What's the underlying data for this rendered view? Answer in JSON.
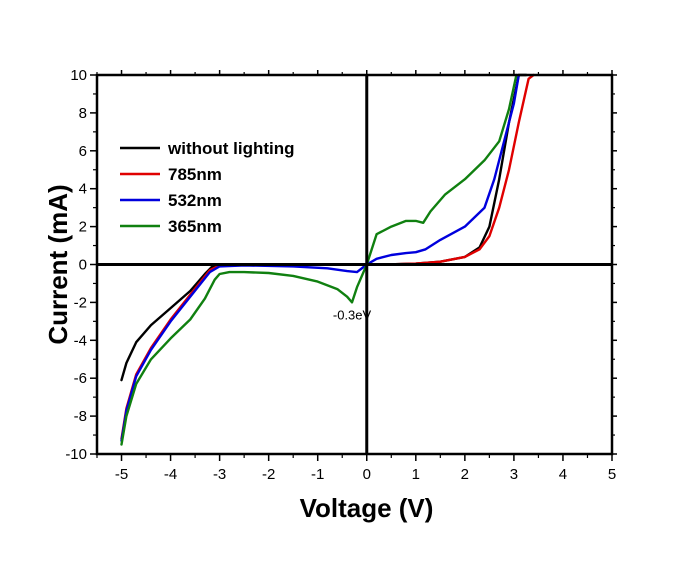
{
  "chart_data": {
    "type": "line",
    "xlabel": "Voltage (V)",
    "ylabel": "Current (mA)",
    "xlim": [
      -5.5,
      5
    ],
    "ylim": [
      -10,
      10
    ],
    "xticks": [
      -5,
      -4,
      -3,
      -2,
      -1,
      0,
      1,
      2,
      3,
      4,
      5
    ],
    "yticks": [
      -10,
      -8,
      -6,
      -4,
      -2,
      0,
      2,
      4,
      6,
      8,
      10
    ],
    "legend_position": "top-left",
    "zero_lines": true,
    "grid": false,
    "annotations": [
      {
        "text": "-0.3eV",
        "x": -0.3,
        "y": -2.9
      }
    ],
    "series": [
      {
        "name": "without lighting",
        "color": "#000000",
        "x": [
          -5.0,
          -4.9,
          -4.7,
          -4.4,
          -4.0,
          -3.6,
          -3.3,
          -3.15,
          -3.0,
          -2.5,
          -1.5,
          -0.5,
          0,
          0.5,
          1.0,
          1.5,
          2.0,
          2.3,
          2.5,
          2.7,
          2.9,
          3.1,
          3.25
        ],
        "y": [
          -6.1,
          -5.2,
          -4.1,
          -3.2,
          -2.3,
          -1.4,
          -0.5,
          -0.1,
          -0.02,
          -0.01,
          -0.005,
          -0.002,
          0,
          0.01,
          0.05,
          0.15,
          0.4,
          0.9,
          2.0,
          4.5,
          7.5,
          10.0,
          10.0
        ]
      },
      {
        "name": "785nm",
        "color": "#e00000",
        "x": [
          -5.0,
          -4.9,
          -4.7,
          -4.4,
          -4.0,
          -3.6,
          -3.2,
          -3.0,
          -2.5,
          -1.5,
          -0.5,
          0,
          0.5,
          1.0,
          1.5,
          2.0,
          2.3,
          2.5,
          2.7,
          2.9,
          3.1,
          3.3,
          3.4
        ],
        "y": [
          -9.2,
          -7.6,
          -5.8,
          -4.4,
          -2.9,
          -1.6,
          -0.3,
          -0.05,
          -0.02,
          -0.01,
          -0.005,
          0,
          0.01,
          0.05,
          0.15,
          0.4,
          0.8,
          1.5,
          3.0,
          5.0,
          7.5,
          9.8,
          10.0
        ]
      },
      {
        "name": "532nm",
        "color": "#0000dd",
        "x": [
          -5.0,
          -4.9,
          -4.7,
          -4.4,
          -4.0,
          -3.6,
          -3.2,
          -3.0,
          -2.5,
          -1.5,
          -0.8,
          -0.4,
          -0.2,
          0,
          0.2,
          0.5,
          0.8,
          1.0,
          1.2,
          1.5,
          2.0,
          2.4,
          2.6,
          2.8,
          3.0,
          3.1
        ],
        "y": [
          -9.3,
          -7.7,
          -5.9,
          -4.5,
          -3.0,
          -1.7,
          -0.4,
          -0.1,
          -0.05,
          -0.1,
          -0.2,
          -0.35,
          -0.4,
          0,
          0.3,
          0.5,
          0.6,
          0.65,
          0.8,
          1.3,
          2.0,
          3.0,
          4.5,
          6.5,
          8.5,
          10.0
        ]
      },
      {
        "name": "365nm",
        "color": "#108010",
        "x": [
          -5.0,
          -4.9,
          -4.7,
          -4.4,
          -4.0,
          -3.6,
          -3.3,
          -3.1,
          -3.0,
          -2.8,
          -2.5,
          -2.0,
          -1.5,
          -1.0,
          -0.6,
          -0.4,
          -0.3,
          -0.2,
          0,
          0.2,
          0.5,
          0.8,
          1.0,
          1.15,
          1.3,
          1.6,
          2.0,
          2.4,
          2.7,
          2.9,
          3.05
        ],
        "y": [
          -9.5,
          -8.0,
          -6.3,
          -5.0,
          -3.9,
          -2.9,
          -1.8,
          -0.8,
          -0.5,
          -0.4,
          -0.4,
          -0.45,
          -0.6,
          -0.9,
          -1.3,
          -1.7,
          -2.0,
          -1.2,
          0,
          1.6,
          2.0,
          2.3,
          2.3,
          2.2,
          2.8,
          3.7,
          4.5,
          5.5,
          6.5,
          8.2,
          10.0
        ]
      }
    ]
  }
}
